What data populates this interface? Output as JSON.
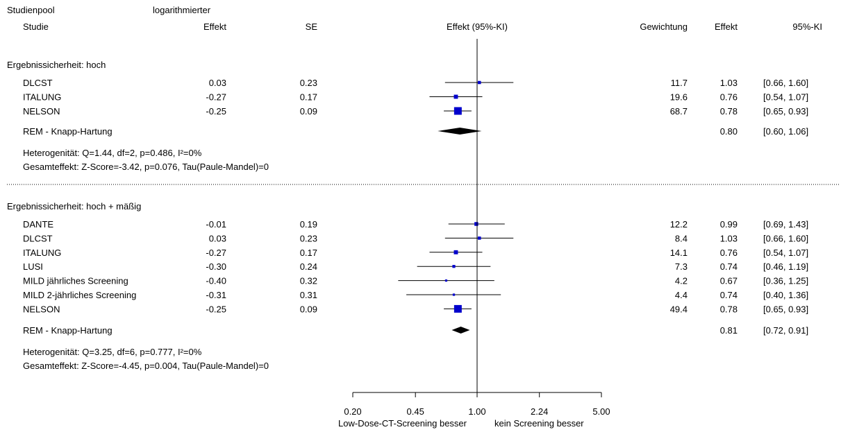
{
  "header": {
    "col1_line1": "Studienpool",
    "col1_line2": "Studie",
    "col2_line1": "logarithmierter",
    "col2_line2": "Effekt",
    "col3": "SE",
    "col4": "Effekt (95%-KI)",
    "col5": "Gewichtung",
    "col6": "Effekt",
    "col7": "95%-KI"
  },
  "chart_data": {
    "type": "forest",
    "x_scale": "log",
    "xlim": [
      0.2,
      5.0
    ],
    "x_ticks": [
      "0.20",
      "0.45",
      "1.00",
      "2.24",
      "5.00"
    ],
    "reference_line": 1.0,
    "x_label_left": "Low-Dose-CT-Screening besser",
    "x_label_right": "kein Screening besser",
    "colors": {
      "study_marker": "#0000cc",
      "pooled_diamond": "#000000",
      "lines": "#000000"
    },
    "groups": [
      {
        "title": "Ergebnissicherheit: hoch",
        "studies": [
          {
            "name": "DLCST",
            "log_effect": "0.03",
            "se": "0.23",
            "weight": "11.7",
            "effect": "1.03",
            "ci": "[0.66, 1.60]",
            "est": 1.03,
            "lo": 0.66,
            "hi": 1.6
          },
          {
            "name": "ITALUNG",
            "log_effect": "-0.27",
            "se": "0.17",
            "weight": "19.6",
            "effect": "0.76",
            "ci": "[0.54, 1.07]",
            "est": 0.76,
            "lo": 0.54,
            "hi": 1.07
          },
          {
            "name": "NELSON",
            "log_effect": "-0.25",
            "se": "0.09",
            "weight": "68.7",
            "effect": "0.78",
            "ci": "[0.65, 0.93]",
            "est": 0.78,
            "lo": 0.65,
            "hi": 0.93
          }
        ],
        "pooled": {
          "name": "REM - Knapp-Hartung",
          "effect": "0.80",
          "ci": "[0.60, 1.06]",
          "est": 0.8,
          "lo": 0.6,
          "hi": 1.06
        },
        "heterogeneity": "Heterogenität: Q=1.44, df=2, p=0.486, I²=0%",
        "overall": "Gesamteffekt: Z-Score=-3.42, p=0.076, Tau(Paule-Mandel)=0"
      },
      {
        "title": "Ergebnissicherheit: hoch + mäßig",
        "studies": [
          {
            "name": "DANTE",
            "log_effect": "-0.01",
            "se": "0.19",
            "weight": "12.2",
            "effect": "0.99",
            "ci": "[0.69, 1.43]",
            "est": 0.99,
            "lo": 0.69,
            "hi": 1.43
          },
          {
            "name": "DLCST",
            "log_effect": "0.03",
            "se": "0.23",
            "weight": "8.4",
            "effect": "1.03",
            "ci": "[0.66, 1.60]",
            "est": 1.03,
            "lo": 0.66,
            "hi": 1.6
          },
          {
            "name": "ITALUNG",
            "log_effect": "-0.27",
            "se": "0.17",
            "weight": "14.1",
            "effect": "0.76",
            "ci": "[0.54, 1.07]",
            "est": 0.76,
            "lo": 0.54,
            "hi": 1.07
          },
          {
            "name": "LUSI",
            "log_effect": "-0.30",
            "se": "0.24",
            "weight": "7.3",
            "effect": "0.74",
            "ci": "[0.46, 1.19]",
            "est": 0.74,
            "lo": 0.46,
            "hi": 1.19
          },
          {
            "name": "MILD jährliches Screening",
            "log_effect": "-0.40",
            "se": "0.32",
            "weight": "4.2",
            "effect": "0.67",
            "ci": "[0.36, 1.25]",
            "est": 0.67,
            "lo": 0.36,
            "hi": 1.25
          },
          {
            "name": "MILD 2-jährliches Screening",
            "log_effect": "-0.31",
            "se": "0.31",
            "weight": "4.4",
            "effect": "0.74",
            "ci": "[0.40, 1.36]",
            "est": 0.74,
            "lo": 0.4,
            "hi": 1.36
          },
          {
            "name": "NELSON",
            "log_effect": "-0.25",
            "se": "0.09",
            "weight": "49.4",
            "effect": "0.78",
            "ci": "[0.65, 0.93]",
            "est": 0.78,
            "lo": 0.65,
            "hi": 0.93
          }
        ],
        "pooled": {
          "name": "REM - Knapp-Hartung",
          "effect": "0.81",
          "ci": "[0.72, 0.91]",
          "est": 0.81,
          "lo": 0.72,
          "hi": 0.91
        },
        "heterogeneity": "Heterogenität: Q=3.25, df=6, p=0.777, I²=0%",
        "overall": "Gesamteffekt: Z-Score=-4.45, p=0.004, Tau(Paule-Mandel)=0"
      }
    ]
  }
}
